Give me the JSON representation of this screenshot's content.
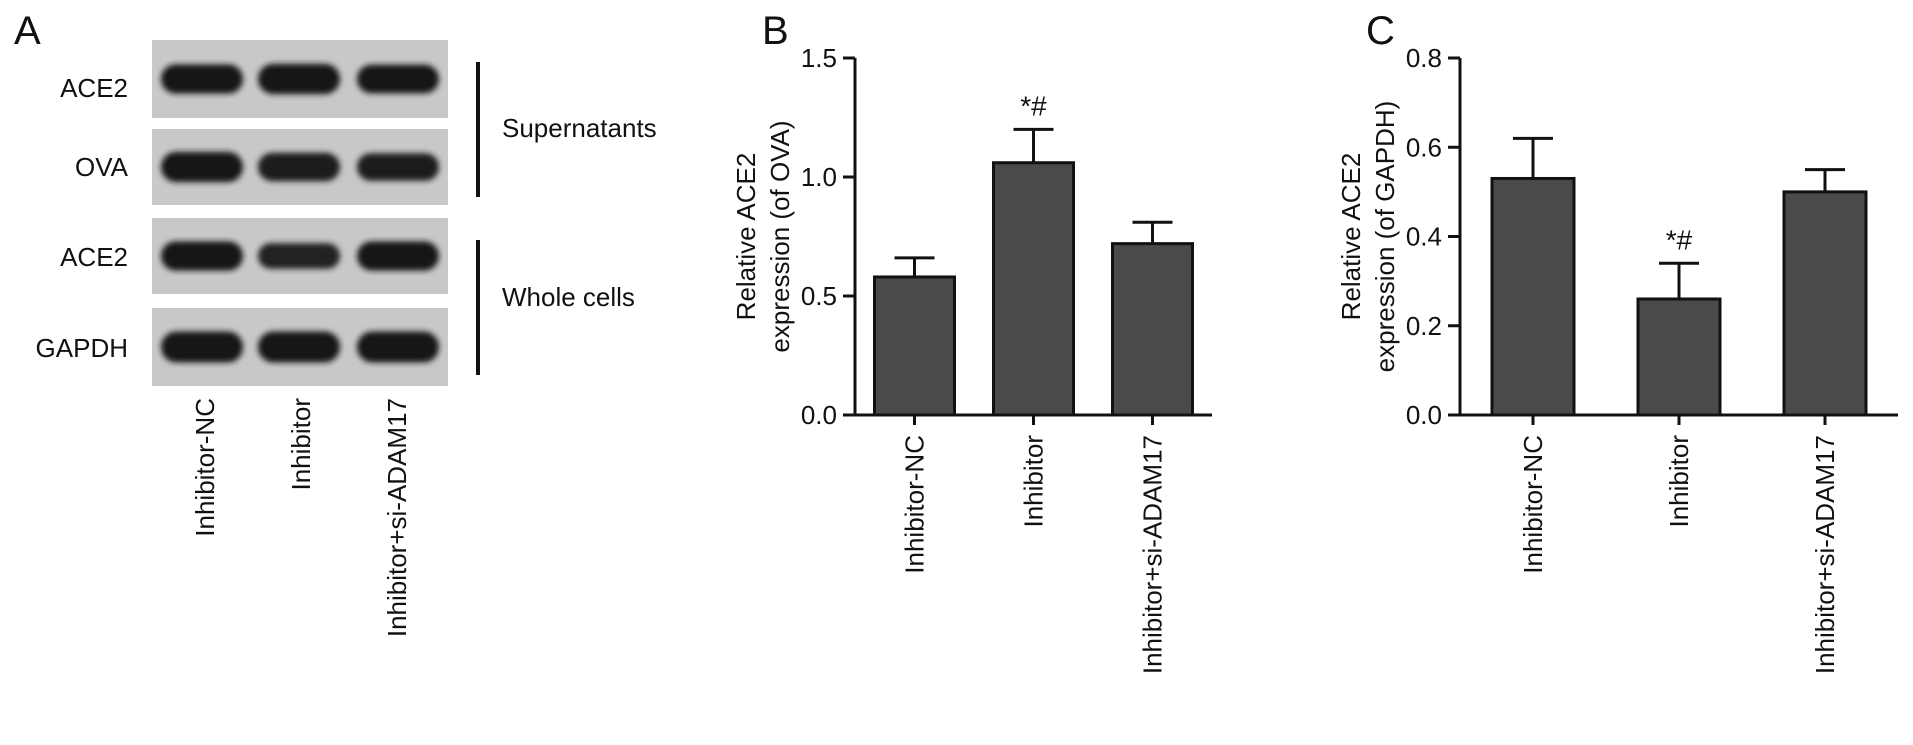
{
  "panel_a": {
    "letter": "A",
    "blot_rows": [
      {
        "label": "ACE2",
        "band_strengths": [
          0.85,
          0.9,
          0.82
        ]
      },
      {
        "label": "OVA",
        "band_strengths": [
          0.9,
          0.8,
          0.75
        ]
      },
      {
        "label": "ACE2",
        "band_strengths": [
          0.85,
          0.65,
          0.85
        ]
      },
      {
        "label": "GAPDH",
        "band_strengths": [
          0.95,
          0.95,
          0.95
        ]
      }
    ],
    "groups": [
      {
        "label": "Supernatants"
      },
      {
        "label": "Whole cells"
      }
    ],
    "lane_labels": [
      "Inhibitor-NC",
      "Inhibitor",
      "Inhibitor+si-ADAM17"
    ]
  },
  "chart_data": [
    {
      "panel": "B",
      "type": "bar",
      "categories": [
        "Inhibitor-NC",
        "Inhibitor",
        "Inhibitor+si-ADAM17"
      ],
      "values": [
        0.58,
        1.06,
        0.72
      ],
      "errors": [
        0.08,
        0.14,
        0.09
      ],
      "annotations": [
        "",
        "*#",
        ""
      ],
      "ylabel_line1": "Relative ACE2",
      "ylabel_line2": "expression (of OVA)",
      "ylim": [
        0,
        1.5
      ],
      "yticks": [
        0.0,
        0.5,
        1.0,
        1.5
      ],
      "ytick_labels": [
        "0.0",
        "0.5",
        "1.0",
        "1.5"
      ],
      "bar_color": "#4a4a4a"
    },
    {
      "panel": "C",
      "type": "bar",
      "categories": [
        "Inhibitor-NC",
        "Inhibitor",
        "Inhibitor+si-ADAM17"
      ],
      "values": [
        0.53,
        0.26,
        0.5
      ],
      "errors": [
        0.09,
        0.08,
        0.05
      ],
      "annotations": [
        "",
        "*#",
        ""
      ],
      "ylabel_line1": "Relative ACE2",
      "ylabel_line2": "expression (of GAPDH)",
      "ylim": [
        0,
        0.8
      ],
      "yticks": [
        0.0,
        0.2,
        0.4,
        0.6,
        0.8
      ],
      "ytick_labels": [
        "0.0",
        "0.2",
        "0.4",
        "0.6",
        "0.8"
      ],
      "bar_color": "#4a4a4a"
    }
  ]
}
